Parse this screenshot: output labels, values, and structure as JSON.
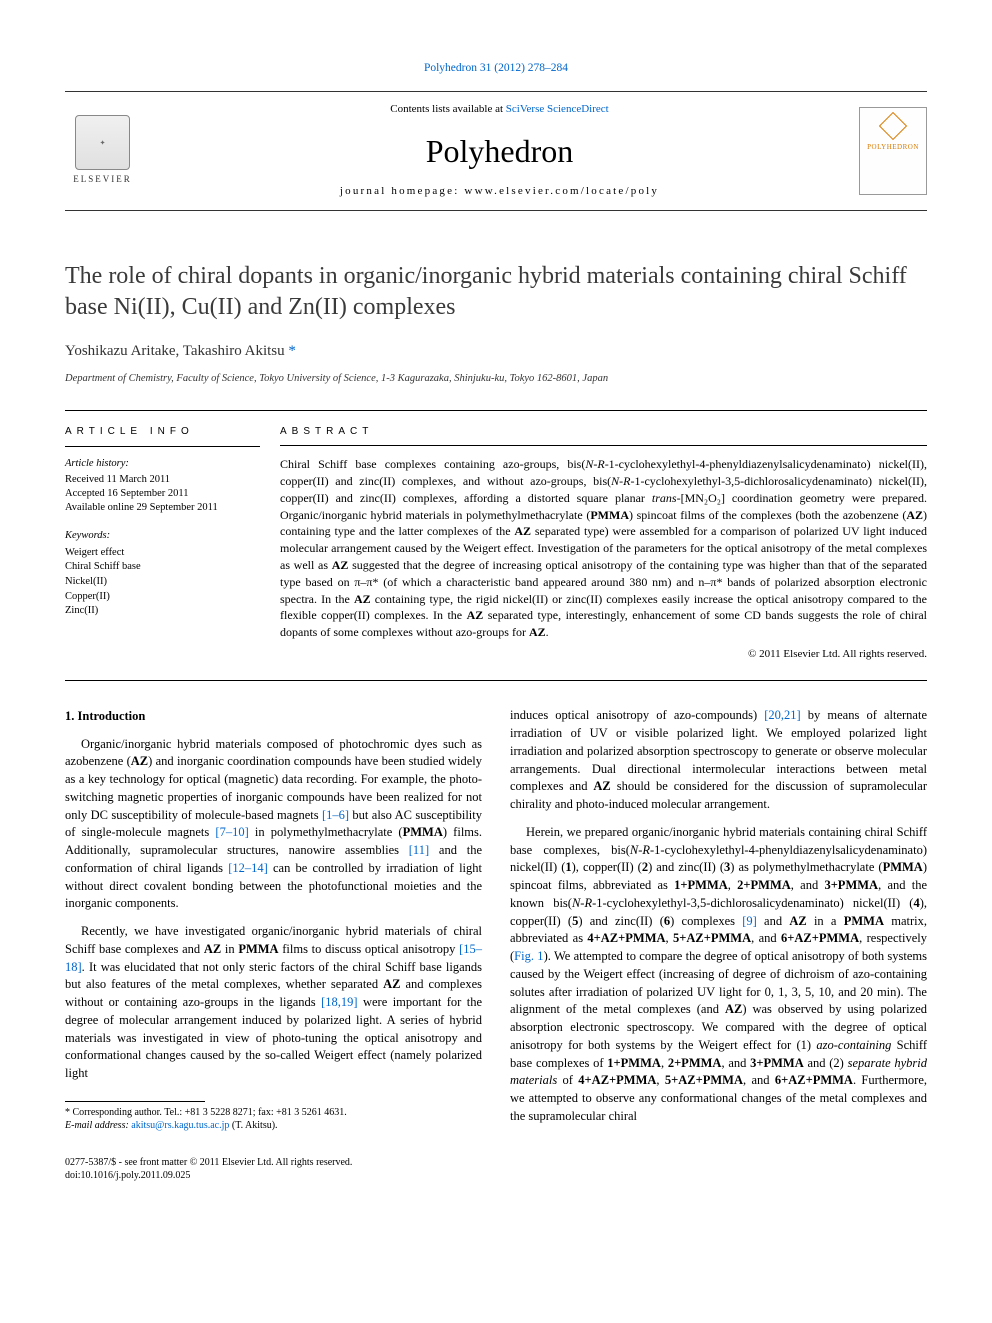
{
  "header": {
    "citation_link": "Polyhedron 31 (2012) 278–284",
    "contents_prefix": "Contents lists available at ",
    "contents_link": "SciVerse ScienceDirect",
    "journal_title": "Polyhedron",
    "homepage_prefix": "journal homepage: ",
    "homepage_url": "www.elsevier.com/locate/poly",
    "elsevier_label": "ELSEVIER",
    "cover_label": "POLYHEDRON"
  },
  "article": {
    "title": "The role of chiral dopants in organic/inorganic hybrid materials containing chiral Schiff base Ni(II), Cu(II) and Zn(II) complexes",
    "authors_html": "Yoshikazu Aritake, Takashiro Akitsu",
    "corr_mark": "*",
    "affiliation": "Department of Chemistry, Faculty of Science, Tokyo University of Science, 1-3 Kagurazaka, Shinjuku-ku, Tokyo 162-8601, Japan"
  },
  "info": {
    "heading": "article info",
    "history_label": "Article history:",
    "received": "Received 11 March 2011",
    "accepted": "Accepted 16 September 2011",
    "online": "Available online 29 September 2011",
    "keywords_label": "Keywords:",
    "keywords": [
      "Weigert effect",
      "Chiral Schiff base",
      "Nickel(II)",
      "Copper(II)",
      "Zinc(II)"
    ]
  },
  "abstract": {
    "heading": "abstract",
    "text_parts": [
      "Chiral Schiff base complexes containing azo-groups, bis(",
      "N-R",
      "-1-cyclohexylethyl-4-phenyldiazenylsalicydenaminato) nickel(II), copper(II) and zinc(II) complexes, and without azo-groups, bis(",
      "N-R",
      "-1-cyclohexylethyl-3,5-dichlorosalicydenaminato) nickel(II), copper(II) and zinc(II) complexes, affording a distorted square planar ",
      "trans",
      "-[MN₂O₂] coordination geometry were prepared. Organic/inorganic hybrid materials in polymethylmethacrylate (",
      "PMMA",
      ") spincoat films of the complexes (both the azobenzene (",
      "AZ",
      ") containing type and the latter complexes of the ",
      "AZ",
      " separated type) were assembled for a comparison of polarized UV light induced molecular arrangement caused by the Weigert effect. Investigation of the parameters for the optical anisotropy of the metal complexes as well as ",
      "AZ",
      " suggested that the degree of increasing optical anisotropy of the containing type was higher than that of the separated type based on π–π* (of which a characteristic band appeared around 380 nm) and n–π* bands of polarized absorption electronic spectra. In the ",
      "AZ",
      " containing type, the rigid nickel(II) or zinc(II) complexes easily increase the optical anisotropy compared to the flexible copper(II) complexes. In the ",
      "AZ",
      " separated type, interestingly, enhancement of some CD bands suggests the role of chiral dopants of some complexes without azo-groups for ",
      "AZ",
      "."
    ],
    "copyright": "© 2011 Elsevier Ltd. All rights reserved."
  },
  "body": {
    "section_heading": "1. Introduction",
    "left_col_paras": [
      {
        "runs": [
          {
            "t": "Organic/inorganic hybrid materials composed of photochromic dyes such as azobenzene ("
          },
          {
            "t": "AZ",
            "b": true
          },
          {
            "t": ") and inorganic coordination compounds have been studied widely as a key technology for optical (magnetic) data recording. For example, the photo-switching magnetic properties of inorganic compounds have been realized for not only DC susceptibility of molecule-based magnets "
          },
          {
            "t": "[1–6]",
            "link": true
          },
          {
            "t": " but also AC susceptibility of single-molecule magnets "
          },
          {
            "t": "[7–10]",
            "link": true
          },
          {
            "t": " in polymethylmethacrylate ("
          },
          {
            "t": "PMMA",
            "b": true
          },
          {
            "t": ") films. Additionally, supramolecular structures, nanowire assemblies "
          },
          {
            "t": "[11]",
            "link": true
          },
          {
            "t": " and the conformation of chiral ligands "
          },
          {
            "t": "[12–14]",
            "link": true
          },
          {
            "t": " can be controlled by irradiation of light without direct covalent bonding between the photofunctional moieties and the inorganic components."
          }
        ]
      },
      {
        "runs": [
          {
            "t": "Recently, we have investigated organic/inorganic hybrid materials of chiral Schiff base complexes and "
          },
          {
            "t": "AZ",
            "b": true
          },
          {
            "t": " in "
          },
          {
            "t": "PMMA",
            "b": true
          },
          {
            "t": " films to discuss optical anisotropy "
          },
          {
            "t": "[15–18]",
            "link": true
          },
          {
            "t": ". It was elucidated that not only steric factors of the chiral Schiff base ligands but also features of the metal complexes, whether separated "
          },
          {
            "t": "AZ",
            "b": true
          },
          {
            "t": " and complexes without or containing azo-groups in the ligands "
          },
          {
            "t": "[18,19]",
            "link": true
          },
          {
            "t": " were important for the degree of molecular arrangement induced by polarized light. A series of hybrid materials was investigated in view of photo-tuning the optical anisotropy and conformational changes caused by the so-called Weigert effect (namely polarized light"
          }
        ]
      }
    ],
    "right_col_paras": [
      {
        "no_indent": true,
        "runs": [
          {
            "t": "induces optical anisotropy of azo-compounds) "
          },
          {
            "t": "[20,21]",
            "link": true
          },
          {
            "t": " by means of alternate irradiation of UV or visible polarized light. We employed polarized light irradiation and polarized absorption spectroscopy to generate or observe molecular arrangements. Dual directional intermolecular interactions between metal complexes and "
          },
          {
            "t": "AZ",
            "b": true
          },
          {
            "t": " should be considered for the discussion of supramolecular chirality and photo-induced molecular arrangement."
          }
        ]
      },
      {
        "runs": [
          {
            "t": "Herein, we prepared organic/inorganic hybrid materials containing chiral Schiff base complexes, bis("
          },
          {
            "t": "N-R",
            "i": true
          },
          {
            "t": "-1-cyclohexylethyl-4-phenyldiazenylsalicydenaminato) nickel(II) ("
          },
          {
            "t": "1",
            "b": true
          },
          {
            "t": "), copper(II) ("
          },
          {
            "t": "2",
            "b": true
          },
          {
            "t": ") and zinc(II) ("
          },
          {
            "t": "3",
            "b": true
          },
          {
            "t": ") as polymethylmethacrylate ("
          },
          {
            "t": "PMMA",
            "b": true
          },
          {
            "t": ") spincoat films, abbreviated as "
          },
          {
            "t": "1+PMMA",
            "b": true
          },
          {
            "t": ", "
          },
          {
            "t": "2+PMMA",
            "b": true
          },
          {
            "t": ", and "
          },
          {
            "t": "3+PMMA",
            "b": true
          },
          {
            "t": ", and the known bis("
          },
          {
            "t": "N-R",
            "i": true
          },
          {
            "t": "-1-cyclohexylethyl-3,5-dichlorosalicydenaminato) nickel(II) ("
          },
          {
            "t": "4",
            "b": true
          },
          {
            "t": "), copper(II) ("
          },
          {
            "t": "5",
            "b": true
          },
          {
            "t": ") and zinc(II) ("
          },
          {
            "t": "6",
            "b": true
          },
          {
            "t": ") complexes "
          },
          {
            "t": "[9]",
            "link": true
          },
          {
            "t": " and "
          },
          {
            "t": "AZ",
            "b": true
          },
          {
            "t": " in a "
          },
          {
            "t": "PMMA",
            "b": true
          },
          {
            "t": " matrix, abbreviated as "
          },
          {
            "t": "4+AZ+PMMA",
            "b": true
          },
          {
            "t": ", "
          },
          {
            "t": "5+AZ+PMMA",
            "b": true
          },
          {
            "t": ", and "
          },
          {
            "t": "6+AZ+PMMA",
            "b": true
          },
          {
            "t": ", respectively ("
          },
          {
            "t": "Fig. 1",
            "link": true
          },
          {
            "t": "). We attempted to compare the degree of optical anisotropy of both systems caused by the Weigert effect (increasing of degree of dichroism of azo-containing solutes after irradiation of polarized UV light for 0, 1, 3, 5, 10, and 20 min). The alignment of the metal complexes (and "
          },
          {
            "t": "AZ",
            "b": true
          },
          {
            "t": ") was observed by using polarized absorption electronic spectroscopy. We compared with the degree of optical anisotropy for both systems by the Weigert effect for (1) "
          },
          {
            "t": "azo-containing",
            "i": true
          },
          {
            "t": " Schiff base complexes of "
          },
          {
            "t": "1+PMMA",
            "b": true
          },
          {
            "t": ", "
          },
          {
            "t": "2+PMMA",
            "b": true
          },
          {
            "t": ", and "
          },
          {
            "t": "3+PMMA",
            "b": true
          },
          {
            "t": " and (2) "
          },
          {
            "t": "separate hybrid materials",
            "i": true
          },
          {
            "t": " of "
          },
          {
            "t": "4+AZ+PMMA",
            "b": true
          },
          {
            "t": ", "
          },
          {
            "t": "5+AZ+PMMA",
            "b": true
          },
          {
            "t": ", and "
          },
          {
            "t": "6+AZ+PMMA",
            "b": true
          },
          {
            "t": ". Furthermore, we attempted to observe any conformational changes of the metal complexes and the supramolecular chiral"
          }
        ]
      }
    ]
  },
  "footnote": {
    "corr": "* Corresponding author. Tel.: +81 3 5228 8271; fax: +81 3 5261 4631.",
    "email_label": "E-mail address:",
    "email": "akitsu@rs.kagu.tus.ac.jp",
    "email_suffix": " (T. Akitsu)."
  },
  "footer": {
    "issn": "0277-5387/$ - see front matter © 2011 Elsevier Ltd. All rights reserved.",
    "doi": "doi:10.1016/j.poly.2011.09.025"
  }
}
